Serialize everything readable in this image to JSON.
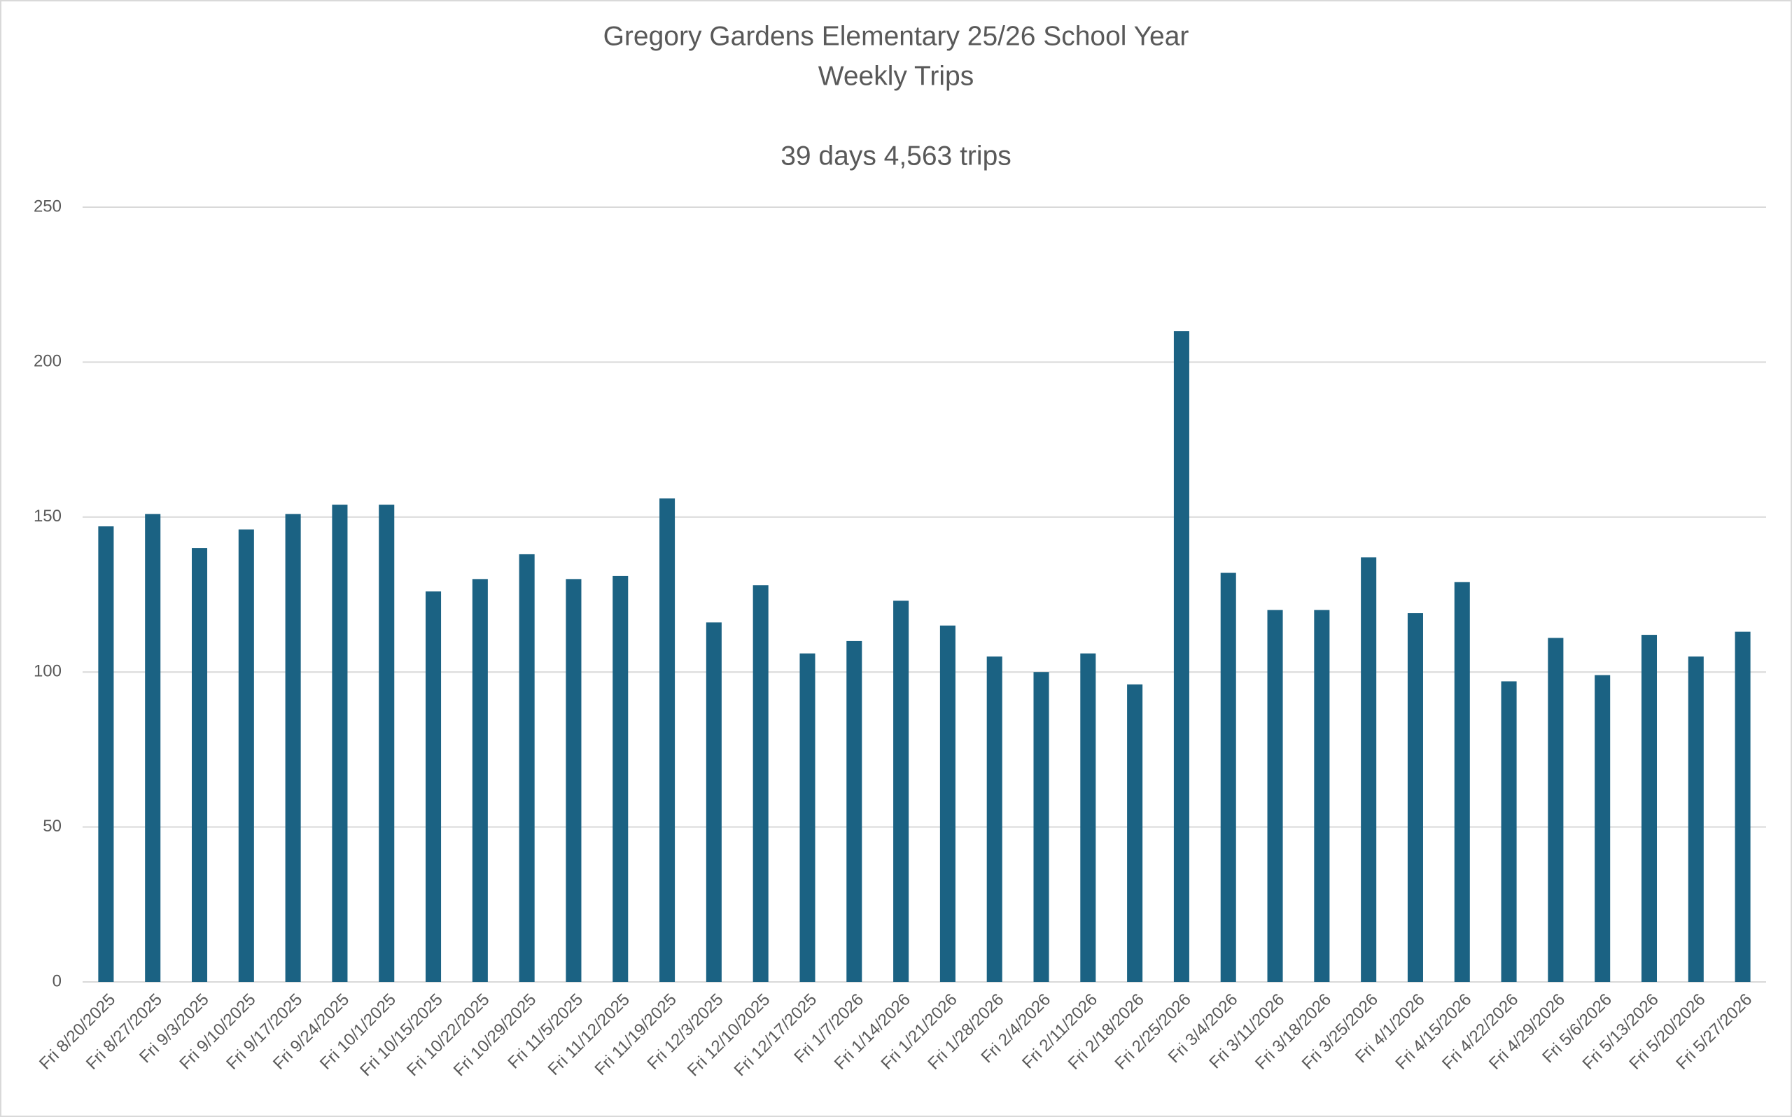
{
  "chart_data": {
    "type": "bar",
    "title": "Gregory Gardens Elementary 25/26 School Year",
    "subtitle": "Weekly Trips",
    "annotation": "39 days 4,563 trips",
    "categories": [
      "Fri 8/20/2025",
      "Fri 8/27/2025",
      "Fri 9/3/2025",
      "Fri 9/10/2025",
      "Fri 9/17/2025",
      "Fri 9/24/2025",
      "Fri 10/1/2025",
      "Fri 10/15/2025",
      "Fri 10/22/2025",
      "Fri 10/29/2025",
      "Fri 11/5/2025",
      "Fri 11/12/2025",
      "Fri 11/19/2025",
      "Fri 12/3/2025",
      "Fri 12/10/2025",
      "Fri 12/17/2025",
      "Fri 1/7/2026",
      "Fri 1/14/2026",
      "Fri 1/21/2026",
      "Fri 1/28/2026",
      "Fri 2/4/2026",
      "Fri 2/11/2026",
      "Fri 2/18/2026",
      "Fri 2/25/2026",
      "Fri 3/4/2026",
      "Fri 3/11/2026",
      "Fri 3/18/2026",
      "Fri 3/25/2026",
      "Fri 4/1/2026",
      "Fri 4/15/2026",
      "Fri 4/22/2026",
      "Fri 4/29/2026",
      "Fri 5/6/2026",
      "Fri 5/13/2026",
      "Fri 5/20/2026",
      "Fri 5/27/2026"
    ],
    "values": [
      147,
      151,
      140,
      146,
      151,
      154,
      154,
      126,
      130,
      138,
      130,
      131,
      156,
      116,
      128,
      106,
      110,
      123,
      115,
      105,
      100,
      106,
      96,
      210,
      132,
      120,
      120,
      137,
      119,
      129,
      97,
      111,
      99,
      112,
      105,
      113
    ],
    "color": "#1b6283",
    "ylim": [
      0,
      250
    ],
    "yticks": [
      0,
      50,
      100,
      150,
      200,
      250
    ],
    "grid": true
  }
}
